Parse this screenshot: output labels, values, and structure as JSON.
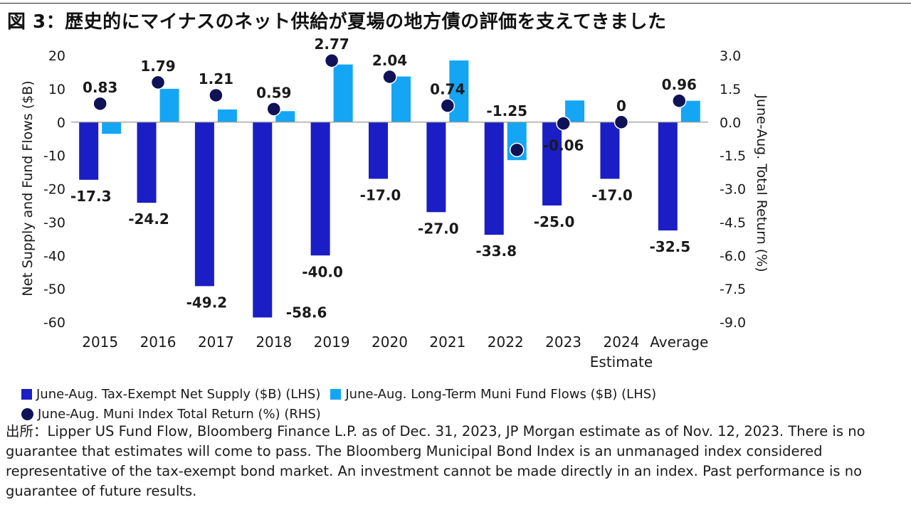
{
  "title": "図 3：歴史的にマイナスのネット供給が夏場の地方債の評価を支えてきました",
  "source_note": "出所：Lipper US Fund Flow, Bloomberg Finance L.P. as of Dec. 31, 2023, JP Morgan estimate as of Nov. 12, 2023. There is no guarantee that estimates will come to pass. The Bloomberg Municipal Bond Index is an unmanaged index considered representative of the tax-exempt bond market. An investment cannot be made directly in an index. Past performance is no guarantee of future results.",
  "colors": {
    "net_supply": "#1a1ec4",
    "fund_flows": "#14a6f5",
    "total_return": "#0f1257"
  },
  "chart_data": {
    "type": "bar",
    "categories": [
      [
        "2015"
      ],
      [
        "2016"
      ],
      [
        "2017"
      ],
      [
        "2018"
      ],
      [
        "2019"
      ],
      [
        "2020"
      ],
      [
        "2021"
      ],
      [
        "2022"
      ],
      [
        "2023"
      ],
      [
        "2024",
        "Estimate"
      ],
      [
        "Average"
      ]
    ],
    "ylabel": "Net Supply and Fund Flows ($B)",
    "y2label": "June-Aug. Total Return (%)",
    "ylim": [
      -60,
      20
    ],
    "y2lim": [
      -9.0,
      3.0
    ],
    "yticks": [
      "20",
      "10",
      "0",
      "-10",
      "-20",
      "-30",
      "-40",
      "-50",
      "-60"
    ],
    "y2ticks": [
      "3.0",
      "1.5",
      "0.0",
      "-1.5",
      "-3.0",
      "-4.5",
      "-6.0",
      "-7.5",
      "-9.0"
    ],
    "grid": false,
    "legend_position": "bottom",
    "series": [
      {
        "name": "June-Aug. Tax-Exempt Net Supply ($B) (LHS)",
        "kind": "bar",
        "axis": "left",
        "values": [
          -17.3,
          -24.2,
          -49.2,
          -58.6,
          -40.0,
          -17.0,
          -27.0,
          -33.8,
          -25.0,
          -17.0,
          -32.5
        ],
        "labels": [
          "-17.3",
          "-24.2",
          "-49.2",
          "-58.6",
          "-40.0",
          "-17.0",
          "-27.0",
          "-33.8",
          "-25.0",
          "-17.0",
          "-32.5"
        ]
      },
      {
        "name": "June-Aug. Long-Term Muni Fund Flows ($B) (LHS)",
        "kind": "bar",
        "axis": "left",
        "values": [
          -3.5,
          10.0,
          3.8,
          3.3,
          17.3,
          13.7,
          18.5,
          -11.4,
          6.5,
          null,
          6.4
        ]
      },
      {
        "name": "June-Aug. Muni Index Total Return (%) (RHS)",
        "kind": "point",
        "axis": "right",
        "values": [
          0.83,
          1.79,
          1.21,
          0.59,
          2.77,
          2.04,
          0.74,
          -1.25,
          -0.06,
          0,
          0.96
        ],
        "labels": [
          "0.83",
          "1.79",
          "1.21",
          "0.59",
          "2.77",
          "2.04",
          "0.74",
          "-1.25",
          "-0.06",
          "0",
          "0.96"
        ]
      }
    ]
  }
}
